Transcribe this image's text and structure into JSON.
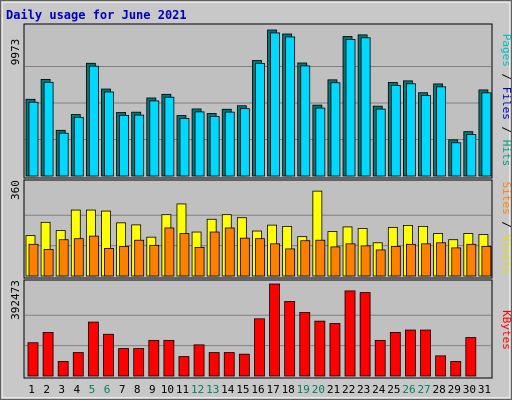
{
  "chart_data": {
    "type": "bar",
    "title": "Daily usage for June 2021",
    "x_ticks": [
      "1",
      "2",
      "3",
      "4",
      "5",
      "6",
      "7",
      "8",
      "9",
      "10",
      "11",
      "12",
      "13",
      "14",
      "15",
      "16",
      "17",
      "18",
      "19",
      "20",
      "21",
      "22",
      "23",
      "24",
      "25",
      "26",
      "27",
      "28",
      "29",
      "30",
      "31"
    ],
    "weekend_ticks": [
      "5",
      "6",
      "12",
      "13",
      "19",
      "20",
      "26",
      "27"
    ],
    "panels": [
      {
        "id": "top",
        "ymax_label": "9973",
        "ymax": 9973,
        "legend": [
          {
            "label": "Pages",
            "color": "#00c0c0"
          },
          {
            "label": " / ",
            "color": "#000000"
          },
          {
            "label": "Files",
            "color": "#0000c0"
          },
          {
            "label": " / ",
            "color": "#000000"
          },
          {
            "label": "Hits",
            "color": "#00a080"
          }
        ],
        "series": [
          {
            "name": "Hits",
            "color": "#007878",
            "values": [
              5240,
              6600,
              3120,
              4200,
              7700,
              5940,
              4340,
              4360,
              5330,
              5580,
              4130,
              4580,
              4270,
              4560,
              4800,
              7890,
              9973,
              9700,
              7720,
              4840,
              6570,
              9530,
              9640,
              4770,
              6390,
              6500,
              5690,
              6290,
              2470,
              3030,
              5880
            ]
          },
          {
            "name": "Files",
            "color": "#00d8ff",
            "values": [
              5040,
              6400,
              2920,
              4000,
              7500,
              5740,
              4140,
              4160,
              5130,
              5380,
              3930,
              4380,
              4070,
              4360,
              4600,
              7690,
              9773,
              9500,
              7520,
              4640,
              6370,
              9330,
              9440,
              4570,
              6190,
              6300,
              5490,
              6090,
              2270,
              2830,
              5680
            ]
          }
        ]
      },
      {
        "id": "middle",
        "ymax_label": "360",
        "ymax": 360,
        "legend": [
          {
            "label": "Sites",
            "color": "#ff8000"
          },
          {
            "label": " / ",
            "color": "#000000"
          },
          {
            "label": "Visits",
            "color": "#e0e000"
          }
        ],
        "series": [
          {
            "name": "Visits",
            "color": "#ffff00",
            "values": [
              158,
              210,
              178,
              258,
              258,
              254,
              208,
              200,
              152,
              240,
              282,
              172,
              222,
              240,
              228,
              176,
              199,
              194,
              154,
              332,
              174,
              192,
              186,
              130,
              190,
              198,
              194,
              166,
              142,
              166,
              162
            ]
          },
          {
            "name": "Sites",
            "color": "#ff8000",
            "values": [
              124,
              104,
              142,
              146,
              156,
              108,
              116,
              140,
              120,
              188,
              166,
              112,
              172,
              188,
              148,
              146,
              126,
              106,
              138,
              140,
              114,
              126,
              118,
              102,
              116,
              124,
              126,
              130,
              110,
              124,
              116
            ]
          }
        ]
      },
      {
        "id": "bottom",
        "ymax_label": "392473",
        "ymax": 392473,
        "legend": [
          {
            "label": "KBytes",
            "color": "#ff0000"
          }
        ],
        "series": [
          {
            "name": "KBytes",
            "color": "#ff0000",
            "values": [
              142000,
              186000,
              62000,
              100000,
              230000,
              178000,
              117000,
              117000,
              152000,
              152000,
              83000,
              133000,
              100000,
              100000,
              93000,
              244000,
              392473,
              318000,
              271000,
              234000,
              224000,
              363000,
              356000,
              152000,
              186000,
              196000,
              196000,
              86000,
              62000,
              164000,
              0
            ]
          }
        ]
      }
    ]
  }
}
